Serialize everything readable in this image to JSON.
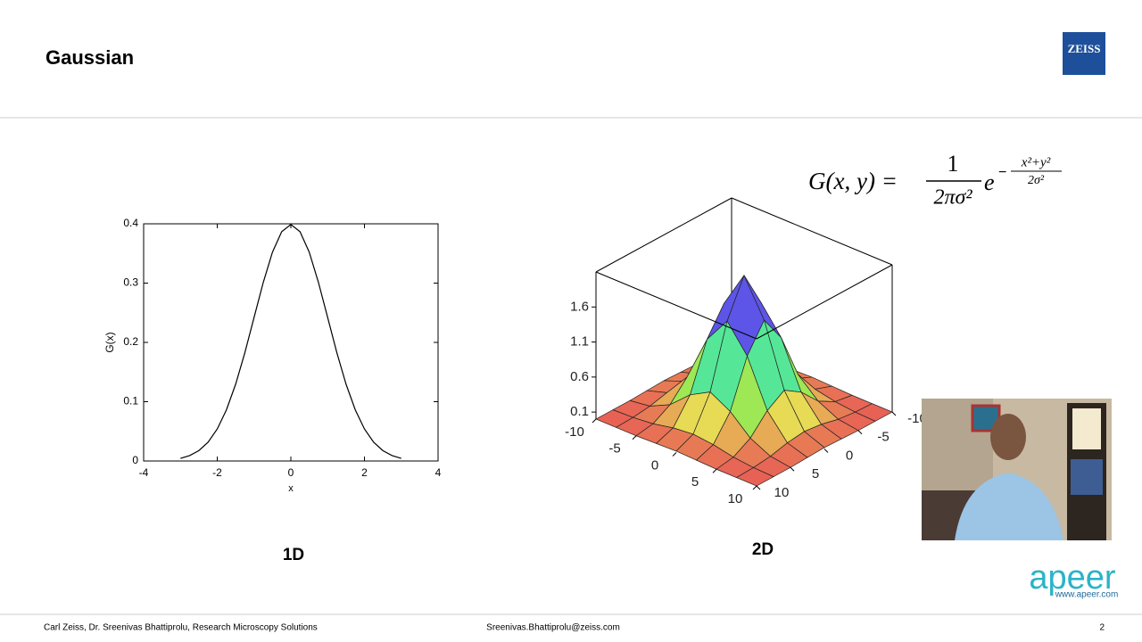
{
  "header": {
    "title": "Gaussian",
    "logo": "ZEISS"
  },
  "chart_data": [
    {
      "type": "line",
      "caption": "1D",
      "xlabel": "x",
      "ylabel": "G(x)",
      "color": "#000000",
      "x": [
        -3,
        -2.75,
        -2.5,
        -2.25,
        -2,
        -1.75,
        -1.5,
        -1.25,
        -1,
        -0.75,
        -0.5,
        -0.25,
        0,
        0.25,
        0.5,
        0.75,
        1,
        1.25,
        1.5,
        1.75,
        2,
        2.25,
        2.5,
        2.75,
        3
      ],
      "values": [
        0.0044,
        0.0091,
        0.0175,
        0.0317,
        0.054,
        0.0863,
        0.1295,
        0.1826,
        0.242,
        0.3011,
        0.3521,
        0.3867,
        0.3989,
        0.3867,
        0.3521,
        0.3011,
        0.242,
        0.1826,
        0.1295,
        0.0863,
        0.054,
        0.0317,
        0.0175,
        0.0091,
        0.0044
      ],
      "xlim": [
        -4,
        4
      ],
      "ylim": [
        0,
        0.4
      ],
      "xticks": [
        -4,
        -2,
        0,
        2,
        4
      ],
      "yticks": [
        0,
        0.1,
        0.2,
        0.3,
        0.4
      ]
    },
    {
      "type": "surface",
      "caption": "2D",
      "formula": {
        "lhs": "G(x, y) =",
        "numerator": "1",
        "denominator": "2πσ²",
        "base": "e",
        "sign": "−",
        "exp_numerator": "x²+y²",
        "exp_denominator": "2σ²"
      },
      "x": [
        -10,
        -7.5,
        -5,
        -2.5,
        0,
        2.5,
        5,
        7.5,
        10
      ],
      "y": [
        -10,
        -7.5,
        -5,
        -2.5,
        0,
        2.5,
        5,
        7.5,
        10
      ],
      "z": [
        [
          0,
          0,
          0,
          0.01,
          0.02,
          0.01,
          0,
          0,
          0
        ],
        [
          0,
          0.01,
          0.04,
          0.1,
          0.13,
          0.1,
          0.04,
          0.01,
          0
        ],
        [
          0,
          0.04,
          0.18,
          0.44,
          0.6,
          0.44,
          0.18,
          0.04,
          0
        ],
        [
          0.01,
          0.1,
          0.44,
          1.1,
          1.48,
          1.1,
          0.44,
          0.1,
          0.01
        ],
        [
          0.02,
          0.13,
          0.6,
          1.48,
          2,
          1.48,
          0.6,
          0.13,
          0.02
        ],
        [
          0.01,
          0.1,
          0.44,
          1.1,
          1.48,
          1.1,
          0.44,
          0.1,
          0.01
        ],
        [
          0,
          0.04,
          0.18,
          0.44,
          0.6,
          0.44,
          0.18,
          0.04,
          0
        ],
        [
          0,
          0.01,
          0.04,
          0.1,
          0.13,
          0.1,
          0.04,
          0.01,
          0
        ],
        [
          0,
          0,
          0,
          0.01,
          0.02,
          0.01,
          0,
          0,
          0
        ]
      ],
      "xlim": [
        -10,
        10
      ],
      "ylim": [
        -10,
        10
      ],
      "zlim": [
        0,
        2.1
      ],
      "xticks": [
        -10,
        -5,
        0,
        5,
        10
      ],
      "yticks": [
        10,
        5,
        0,
        -5,
        -10
      ],
      "zticks": [
        0.1,
        0.6,
        1.1,
        1.6
      ]
    }
  ],
  "brand": {
    "name": "apeer",
    "url": "www.apeer.com"
  },
  "footer": {
    "left": "Carl Zeiss, Dr. Sreenivas Bhattiprolu, Research Microscopy Solutions",
    "center": "Sreenivas.Bhattiprolu@zeiss.com",
    "page": "2"
  }
}
